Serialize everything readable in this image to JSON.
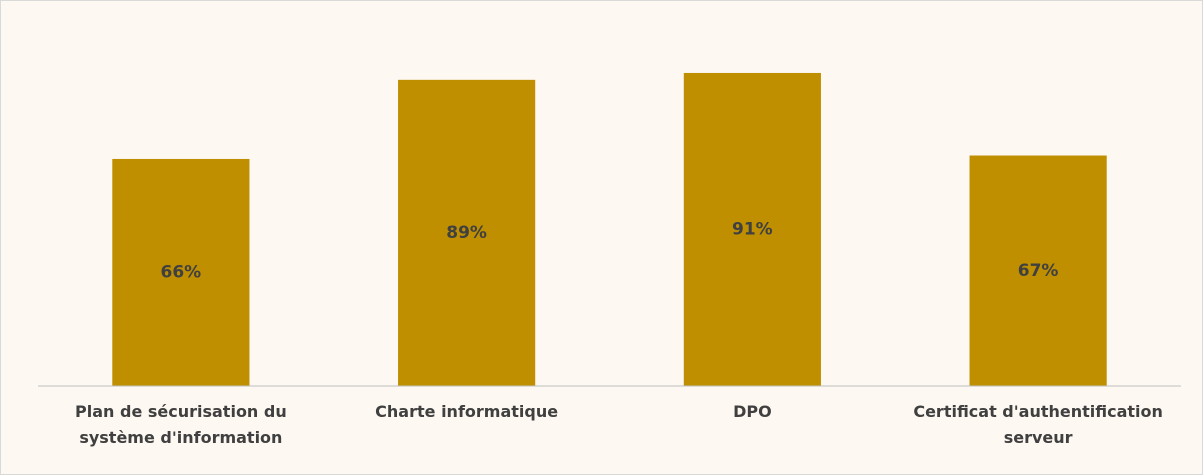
{
  "chart_data": {
    "type": "bar",
    "categories": [
      "Plan de sécurisation du système d'information",
      "Charte informatique",
      "DPO",
      "Certificat d'authentification serveur"
    ],
    "values": [
      66,
      89,
      91,
      67
    ],
    "value_labels": [
      "66%",
      "89%",
      "91%",
      "67%"
    ],
    "color": "#bf8f00",
    "ylim": [
      0,
      100
    ]
  }
}
